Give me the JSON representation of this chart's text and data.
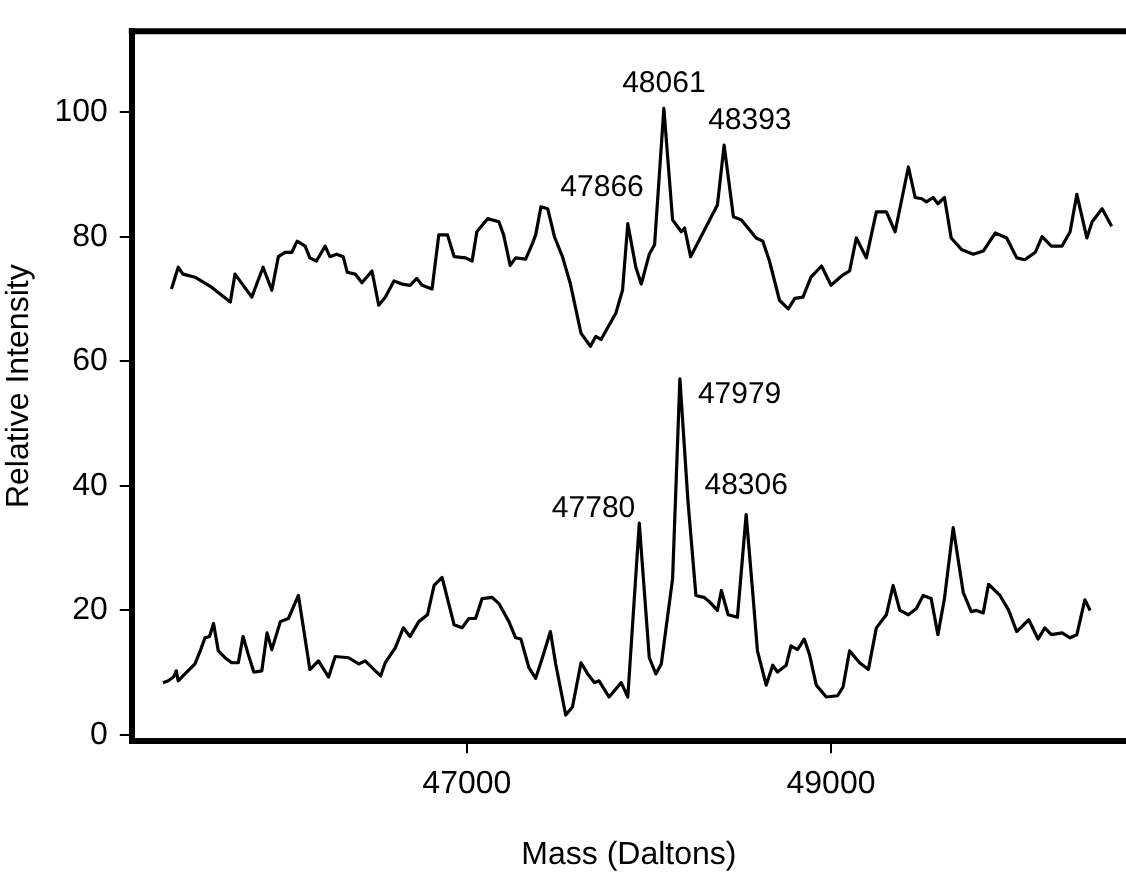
{
  "chart_data": {
    "type": "line",
    "xlabel": "Mass (Daltons)",
    "ylabel": "Relative Intensity",
    "xlim": [
      45160,
      50620
    ],
    "ylim": [
      -1,
      113
    ],
    "xticks": [
      47000,
      49000
    ],
    "yticks": [
      0,
      20,
      40,
      60,
      80,
      100
    ],
    "grid": false,
    "legend": false,
    "marker": "none",
    "line_style": "solid",
    "series": [
      {
        "color": "#000000",
        "x": [
          45378,
          45415,
          45441,
          45507,
          45598,
          45701,
          45727,
          45819,
          45881,
          45929,
          45965,
          46002,
          46039,
          46068,
          46112,
          46138,
          46174,
          46222,
          46248,
          46285,
          46321,
          46343,
          46387,
          46424,
          46479,
          46516,
          46552,
          46600,
          46644,
          46688,
          46725,
          46754,
          46809,
          46846,
          46894,
          46930,
          46993,
          47029,
          47055,
          47114,
          47176,
          47202,
          47238,
          47268,
          47323,
          47360,
          47378,
          47407,
          47444,
          47481,
          47525,
          47569,
          47627,
          47679,
          47708,
          47737,
          47818,
          47855,
          47884,
          47928,
          47958,
          48002,
          48031,
          48082,
          48130,
          48178,
          48196,
          48229,
          48376,
          48413,
          48464,
          48508,
          48589,
          48625,
          48662,
          48717,
          48765,
          48801,
          48846,
          48890,
          48948,
          49000,
          49058,
          49102,
          49139,
          49194,
          49249,
          49304,
          49352,
          49425,
          49462,
          49499,
          49524,
          49561,
          49587,
          49623,
          49660,
          49719,
          49781,
          49836,
          49902,
          49965,
          50020,
          50064,
          50122,
          50159,
          50210,
          50269,
          50313,
          50350,
          50405,
          50434,
          50489,
          50541
        ],
        "values": [
          71.6,
          75.1,
          74.0,
          73.5,
          71.9,
          69.5,
          74.0,
          70.3,
          75.1,
          71.4,
          76.8,
          77.5,
          77.5,
          79.3,
          78.5,
          76.6,
          76.1,
          78.5,
          76.8,
          77.2,
          76.8,
          74.3,
          74.0,
          72.6,
          74.5,
          69.0,
          70.3,
          72.9,
          72.4,
          72.2,
          73.3,
          72.2,
          71.6,
          80.3,
          80.3,
          76.8,
          76.6,
          76.1,
          80.8,
          82.9,
          82.4,
          80.3,
          75.4,
          76.6,
          76.4,
          78.9,
          80.3,
          84.8,
          84.5,
          80.0,
          76.8,
          72.4,
          64.5,
          62.4,
          64.0,
          63.5,
          67.7,
          71.4,
          82.1,
          75.1,
          72.4,
          77.2,
          78.7,
          100.6,
          82.7,
          80.8,
          81.4,
          76.8,
          85.1,
          94.7,
          83.2,
          82.7,
          79.8,
          79.3,
          76.1,
          69.8,
          68.4,
          70.1,
          70.3,
          73.5,
          75.3,
          72.2,
          73.7,
          74.5,
          79.8,
          76.6,
          84.0,
          84.0,
          80.8,
          91.2,
          86.3,
          86.1,
          85.6,
          86.3,
          85.3,
          86.3,
          79.8,
          77.9,
          77.2,
          77.7,
          80.6,
          79.8,
          76.6,
          76.3,
          77.5,
          80.0,
          78.5,
          78.5,
          80.8,
          86.8,
          79.8,
          82.4,
          84.5,
          81.7
        ]
      },
      {
        "color": "#000000",
        "x": [
          45331,
          45360,
          45389,
          45404,
          45415,
          45452,
          45507,
          45536,
          45562,
          45587,
          45609,
          45635,
          45672,
          45709,
          45745,
          45771,
          45800,
          45830,
          45874,
          45903,
          45929,
          45976,
          46020,
          46075,
          46138,
          46185,
          46241,
          46277,
          46351,
          46406,
          46442,
          46497,
          46527,
          46552,
          46607,
          46651,
          46688,
          46736,
          46784,
          46820,
          46864,
          46930,
          46974,
          47011,
          47048,
          47084,
          47139,
          47176,
          47231,
          47268,
          47297,
          47341,
          47378,
          47415,
          47459,
          47488,
          47543,
          47580,
          47627,
          47664,
          47701,
          47726,
          47781,
          47848,
          47884,
          47947,
          48002,
          48038,
          48068,
          48130,
          48170,
          48214,
          48258,
          48302,
          48332,
          48376,
          48398,
          48435,
          48486,
          48534,
          48570,
          48596,
          48644,
          48680,
          48706,
          48754,
          48780,
          48816,
          48853,
          48882,
          48919,
          48974,
          49036,
          49066,
          49102,
          49157,
          49205,
          49249,
          49304,
          49341,
          49378,
          49425,
          49469,
          49506,
          49550,
          49587,
          49623,
          49671,
          49726,
          49770,
          49799,
          49836,
          49865,
          49928,
          49976,
          50020,
          50086,
          50137,
          50174,
          50210,
          50269,
          50313,
          50350,
          50394,
          50423
        ],
        "values": [
          8.4,
          8.7,
          9.3,
          10.3,
          8.7,
          9.8,
          11.4,
          13.5,
          15.6,
          15.8,
          17.9,
          13.5,
          12.4,
          11.6,
          11.6,
          15.8,
          12.9,
          10.1,
          10.3,
          16.4,
          13.7,
          18.2,
          18.7,
          22.4,
          10.5,
          11.9,
          9.3,
          12.6,
          12.4,
          11.4,
          11.9,
          10.3,
          9.5,
          11.6,
          14.0,
          17.2,
          15.8,
          18.2,
          19.3,
          24.0,
          25.3,
          17.7,
          17.2,
          18.7,
          18.7,
          21.9,
          22.1,
          21.1,
          18.2,
          15.6,
          15.4,
          10.8,
          9.1,
          12.4,
          16.6,
          11.4,
          3.2,
          4.5,
          11.6,
          9.8,
          8.4,
          8.7,
          6.1,
          8.4,
          6.1,
          34.0,
          12.4,
          9.8,
          11.4,
          25.1,
          57.2,
          37.7,
          22.4,
          22.1,
          21.4,
          20.0,
          23.2,
          19.3,
          18.9,
          35.4,
          22.9,
          13.5,
          8.0,
          11.2,
          10.1,
          11.2,
          14.3,
          13.7,
          15.4,
          12.9,
          8.0,
          6.1,
          6.3,
          7.7,
          13.5,
          11.6,
          10.5,
          17.2,
          19.3,
          24.0,
          20.0,
          19.3,
          20.3,
          22.4,
          21.9,
          16.1,
          21.9,
          33.3,
          22.9,
          19.8,
          20.0,
          19.6,
          24.2,
          22.4,
          20.0,
          16.6,
          18.5,
          15.4,
          17.2,
          16.1,
          16.4,
          15.6,
          16.1,
          21.7,
          20.0
        ]
      }
    ],
    "annotations": [
      {
        "text": "47866",
        "x": 47884,
        "y": 82.1
      },
      {
        "text": "48061",
        "x": 48082,
        "y": 100.6
      },
      {
        "text": "48393",
        "x": 48413,
        "y": 94.7
      },
      {
        "text": "47780",
        "x": 47947,
        "y": 34.0
      },
      {
        "text": "47979",
        "x": 48170,
        "y": 57.2
      },
      {
        "text": "48306",
        "x": 48534,
        "y": 35.4
      }
    ]
  }
}
